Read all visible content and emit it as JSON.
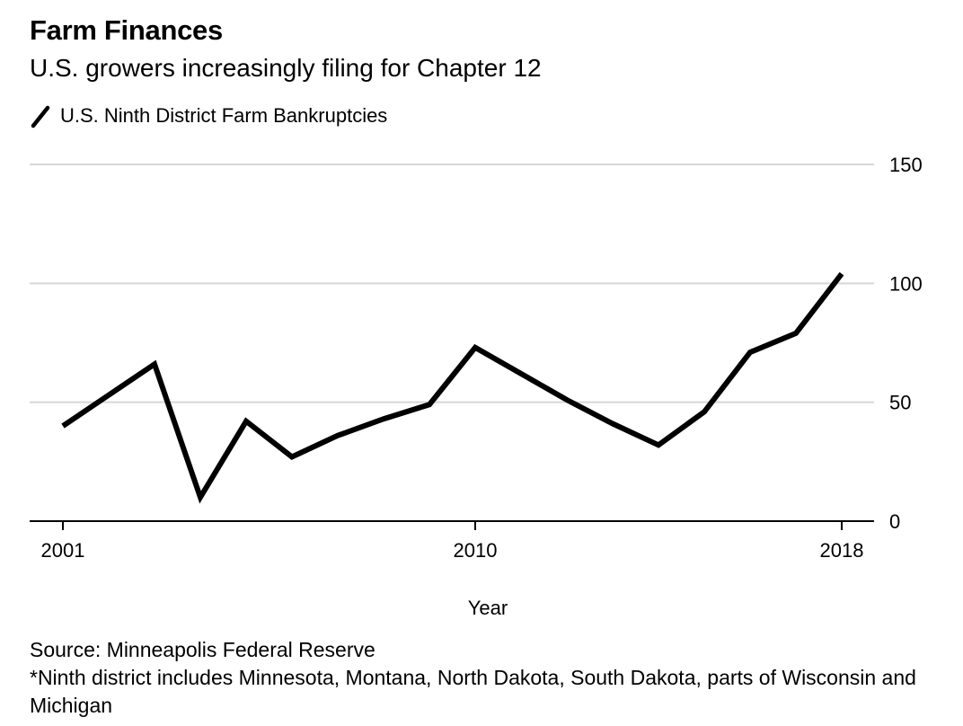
{
  "header": {
    "title": "Farm Finances",
    "subtitle": "U.S. growers increasingly filing for Chapter 12"
  },
  "legend": {
    "label": "U.S. Ninth District Farm Bankruptcies",
    "color": "#000000"
  },
  "footer": {
    "source": "Source: Minneapolis Federal Reserve",
    "note": "*Ninth district includes Minnesota, Montana, North Dakota, South Dakota, parts of Wisconsin and Michigan"
  },
  "chart_data": {
    "type": "line",
    "title": "Farm Finances",
    "subtitle": "U.S. growers increasingly filing for Chapter 12",
    "xlabel": "Year",
    "ylabel": "",
    "x": [
      2001,
      2002,
      2003,
      2004,
      2005,
      2006,
      2007,
      2008,
      2009,
      2010,
      2011,
      2012,
      2013,
      2014,
      2015,
      2016,
      2017,
      2018
    ],
    "xticks": [
      2001,
      2010,
      2018
    ],
    "xlim": [
      2001,
      2018
    ],
    "ylim": [
      0,
      150
    ],
    "yticks": [
      0,
      50,
      100,
      150
    ],
    "y_axis_position": "right",
    "grid": true,
    "legend_position": "top-left",
    "series": [
      {
        "name": "U.S. Ninth District Farm Bankruptcies",
        "color": "#000000",
        "values": [
          40,
          53,
          66,
          10,
          42,
          27,
          36,
          43,
          49,
          73,
          62,
          51,
          41,
          32,
          46,
          71,
          79,
          104
        ]
      }
    ]
  }
}
